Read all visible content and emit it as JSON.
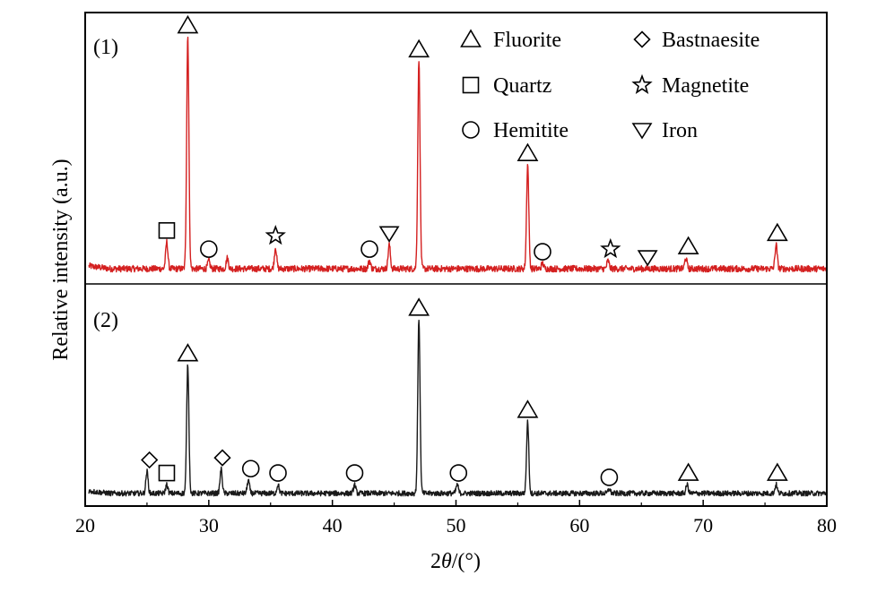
{
  "chart_data": {
    "type": "line",
    "xlabel_prefix": "2",
    "xlabel_symbol": "θ",
    "xlabel_suffix": "/(°)",
    "ylabel": "Relative intensity (a.u.)",
    "xlim": [
      20,
      80
    ],
    "x_ticks": [
      20,
      30,
      40,
      50,
      60,
      70,
      80
    ],
    "grid": false,
    "legend_placement": "top-right",
    "legend": [
      {
        "symbol": "triangle-up",
        "name": "Fluorite"
      },
      {
        "symbol": "diamond",
        "name": "Bastnaesite"
      },
      {
        "symbol": "square",
        "name": "Quartz"
      },
      {
        "symbol": "star",
        "name": "Magnetite"
      },
      {
        "symbol": "circle",
        "name": "Hemitite"
      },
      {
        "symbol": "triangle-down",
        "name": "Iron"
      }
    ],
    "panels": [
      {
        "label": "(1)",
        "color": "#d42020",
        "baseline": 0.05,
        "noise": 0.012,
        "peaks": [
          {
            "x": 26.6,
            "h": 0.1
          },
          {
            "x": 28.3,
            "h": 0.87
          },
          {
            "x": 30.0,
            "h": 0.03
          },
          {
            "x": 31.5,
            "h": 0.04
          },
          {
            "x": 35.4,
            "h": 0.08
          },
          {
            "x": 43.0,
            "h": 0.03
          },
          {
            "x": 44.6,
            "h": 0.09
          },
          {
            "x": 47.0,
            "h": 0.78
          },
          {
            "x": 55.8,
            "h": 0.39
          },
          {
            "x": 57.0,
            "h": 0.02
          },
          {
            "x": 62.3,
            "h": 0.03
          },
          {
            "x": 68.6,
            "h": 0.04
          },
          {
            "x": 75.9,
            "h": 0.09
          }
        ],
        "markers": [
          {
            "x": 28.3,
            "symbol": "triangle-up"
          },
          {
            "x": 47.0,
            "symbol": "triangle-up"
          },
          {
            "x": 55.8,
            "symbol": "triangle-up"
          },
          {
            "x": 68.8,
            "symbol": "triangle-up"
          },
          {
            "x": 76.0,
            "symbol": "triangle-up"
          },
          {
            "x": 26.6,
            "symbol": "square"
          },
          {
            "x": 30.0,
            "symbol": "circle"
          },
          {
            "x": 43.0,
            "symbol": "circle"
          },
          {
            "x": 57.0,
            "symbol": "circle"
          },
          {
            "x": 35.4,
            "symbol": "star"
          },
          {
            "x": 62.5,
            "symbol": "star"
          },
          {
            "x": 44.6,
            "symbol": "triangle-down"
          },
          {
            "x": 65.5,
            "symbol": "triangle-down"
          }
        ]
      },
      {
        "label": "(2)",
        "color": "#1a1a1a",
        "baseline": 0.05,
        "noise": 0.012,
        "peaks": [
          {
            "x": 25.0,
            "h": 0.1
          },
          {
            "x": 26.6,
            "h": 0.04
          },
          {
            "x": 28.3,
            "h": 0.59
          },
          {
            "x": 31.0,
            "h": 0.11
          },
          {
            "x": 33.2,
            "h": 0.06
          },
          {
            "x": 35.6,
            "h": 0.04
          },
          {
            "x": 41.8,
            "h": 0.04
          },
          {
            "x": 47.0,
            "h": 0.8
          },
          {
            "x": 50.1,
            "h": 0.04
          },
          {
            "x": 55.8,
            "h": 0.33
          },
          {
            "x": 62.4,
            "h": 0.02
          },
          {
            "x": 68.7,
            "h": 0.04
          },
          {
            "x": 75.9,
            "h": 0.04
          }
        ],
        "markers": [
          {
            "x": 28.3,
            "symbol": "triangle-up"
          },
          {
            "x": 47.0,
            "symbol": "triangle-up"
          },
          {
            "x": 55.8,
            "symbol": "triangle-up"
          },
          {
            "x": 68.8,
            "symbol": "triangle-up"
          },
          {
            "x": 76.0,
            "symbol": "triangle-up"
          },
          {
            "x": 25.2,
            "symbol": "diamond"
          },
          {
            "x": 31.1,
            "symbol": "diamond"
          },
          {
            "x": 26.6,
            "symbol": "square"
          },
          {
            "x": 33.4,
            "symbol": "circle"
          },
          {
            "x": 35.6,
            "symbol": "circle"
          },
          {
            "x": 41.8,
            "symbol": "circle"
          },
          {
            "x": 50.2,
            "symbol": "circle"
          },
          {
            "x": 62.4,
            "symbol": "circle"
          }
        ]
      }
    ]
  }
}
